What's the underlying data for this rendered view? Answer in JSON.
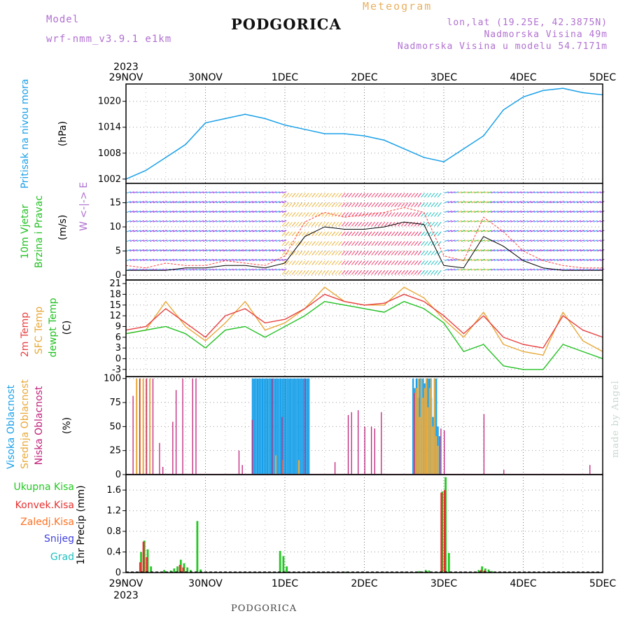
{
  "header": {
    "model_label": "Model",
    "model_name": "wrf-nmm_v3.9.1 e1km",
    "title": "PODGORICA",
    "meteogram_label": "Meteogram",
    "lonlat": "lon,lat (19.25E, 42.3875N)",
    "elevation": "Nadmorska Visina 49m",
    "model_elevation": "Nadmorska Visina u modelu 54.7171m"
  },
  "footer": {
    "station": "PODGORICA",
    "credit": "made by Angel"
  },
  "colors": {
    "pressure": "#1aa0e8",
    "wind_speed": "#000000",
    "gust": "#ff4040",
    "temp2m": "#e84040",
    "sfc_temp": "#e8a838",
    "dewpt": "#22c022",
    "high_cloud": "#1aa0e8",
    "mid_cloud": "#e8a838",
    "low_cloud": "#c0207a",
    "total_precip": "#22c822",
    "conv_precip": "#e83030",
    "frozen_precip": "#ff7020",
    "snow": "#4040e0",
    "hail": "#20c0c0"
  },
  "chart_data": {
    "year": "2023",
    "x_tick_labels": [
      "29NOV",
      "30NOV",
      "1DEC",
      "2DEC",
      "3DEC",
      "4DEC",
      "5DEC"
    ],
    "panels": [
      {
        "type": "line",
        "name": "pressure",
        "ylabel": "Pritisak na nivou mora",
        "unit": "(hPa)",
        "ylim": [
          1001,
          1024
        ],
        "yticks": [
          1002,
          1008,
          1014,
          1020
        ],
        "x_hours": [
          0,
          6,
          12,
          18,
          24,
          30,
          36,
          42,
          48,
          54,
          60,
          66,
          72,
          78,
          84,
          90,
          96,
          102,
          108,
          114,
          120,
          126,
          132,
          138,
          144
        ],
        "values": [
          1002,
          1004,
          1007,
          1010,
          1015,
          1016,
          1017,
          1016,
          1014.5,
          1013.5,
          1012.5,
          1012.5,
          1012,
          1011,
          1009,
          1007,
          1006,
          1009,
          1012,
          1018,
          1021,
          1022.5,
          1023,
          1022,
          1021.5
        ]
      },
      {
        "type": "wind",
        "name": "wind",
        "ylabel_lines": [
          "10m Vjetar",
          "Brzina i Pravac"
        ],
        "unit": "(m/s)",
        "compass": "W <-|-> E",
        "ylim": [
          -1,
          19
        ],
        "yticks": [
          0,
          5,
          10,
          15
        ],
        "x_hours": [
          0,
          6,
          12,
          18,
          24,
          30,
          36,
          42,
          48,
          54,
          60,
          66,
          72,
          78,
          84,
          90,
          96,
          102,
          108,
          114,
          120,
          126,
          132,
          138,
          144
        ],
        "speed": [
          1,
          1,
          1,
          1.5,
          1.5,
          2,
          2,
          1.5,
          2.5,
          8,
          10,
          9.5,
          9.5,
          10,
          11,
          10.5,
          2,
          1.5,
          8,
          6,
          3,
          1.5,
          1,
          1,
          1
        ],
        "gust": [
          2,
          1.5,
          2.5,
          2,
          2,
          3,
          2.5,
          2,
          4,
          11,
          13,
          12,
          12.5,
          13,
          14,
          13,
          4,
          3,
          12,
          9,
          5,
          3,
          2,
          1.5,
          1.5
        ]
      },
      {
        "type": "line",
        "name": "temperature",
        "ylabel_lines": [
          "2m Temp",
          "SFC Temp",
          "dewpt Temp"
        ],
        "unit": "(C)",
        "ylim": [
          -5,
          22
        ],
        "yticks": [
          -3,
          0,
          3,
          6,
          9,
          12,
          15,
          18,
          21
        ],
        "x_hours": [
          0,
          6,
          12,
          18,
          24,
          30,
          36,
          42,
          48,
          54,
          60,
          66,
          72,
          78,
          84,
          90,
          96,
          102,
          108,
          114,
          120,
          126,
          132,
          138,
          144
        ],
        "temp2m": [
          8,
          9,
          14,
          10,
          6,
          12,
          14,
          10,
          11,
          14,
          18,
          16,
          15,
          15.5,
          18,
          16,
          12,
          7,
          12,
          6,
          4,
          3,
          12,
          8,
          6
        ],
        "sfc_temp": [
          7,
          8,
          16,
          9,
          5,
          10,
          16,
          8,
          10,
          14,
          20,
          16,
          15,
          15,
          20,
          17,
          11,
          6,
          13,
          4,
          2,
          1,
          13,
          5,
          2
        ],
        "dewpt": [
          7,
          8,
          9,
          7,
          3,
          8,
          9,
          6,
          9,
          12,
          16,
          15,
          14,
          13,
          16,
          14,
          10,
          2,
          4,
          -2,
          -3,
          -3,
          4,
          2,
          0
        ]
      },
      {
        "type": "bar",
        "name": "cloud",
        "ylabel_lines": [
          "Visoka Oblacnost",
          "Srednja Oblacnost",
          "Niska Oblacnost"
        ],
        "unit": "(%)",
        "ylim": [
          0,
          102
        ],
        "yticks": [
          0,
          25,
          50,
          75,
          100
        ],
        "series": [
          {
            "name": "Visoka Oblacnost",
            "x_hours": [
              38,
              38.5,
              39,
              39.5,
              40,
              40.5,
              41,
              41.5,
              42,
              42.5,
              43,
              43.5,
              44,
              44.5,
              45,
              45.5,
              46,
              46.5,
              47,
              47.5,
              48,
              48.5,
              49,
              49.5,
              50,
              50.5,
              51,
              51.5,
              52,
              52.5,
              53,
              53.5,
              54,
              54.5,
              55,
              86.5,
              87,
              87.5,
              88,
              88.5,
              89,
              89.5,
              90,
              90.5,
              91,
              91.5,
              92,
              92.5,
              93,
              93.5,
              94,
              94.5
            ],
            "values": [
              100,
              100,
              100,
              100,
              100,
              100,
              100,
              100,
              100,
              100,
              100,
              100,
              100,
              100,
              100,
              100,
              100,
              100,
              100,
              100,
              100,
              100,
              100,
              100,
              100,
              100,
              100,
              100,
              100,
              100,
              100,
              100,
              100,
              100,
              100,
              100,
              90,
              100,
              80,
              100,
              100,
              100,
              95,
              100,
              100,
              100,
              80,
              60,
              100,
              100,
              50,
              40
            ]
          },
          {
            "name": "Srednja Oblacnost",
            "x_hours": [
              3,
              4,
              5,
              6,
              7,
              45,
              47,
              52,
              87,
              87.5,
              88,
              88.5,
              89,
              89.5,
              90,
              90.5,
              91,
              91.5,
              92,
              92.5,
              93,
              93.5,
              94
            ],
            "values": [
              100,
              100,
              100,
              100,
              100,
              20,
              15,
              15,
              85,
              90,
              100,
              60,
              100,
              80,
              90,
              100,
              70,
              90,
              100,
              50,
              100,
              40,
              30
            ]
          },
          {
            "name": "Niska Oblacnost",
            "x_hours": [
              2,
              4,
              6,
              8,
              10,
              11,
              14,
              15,
              17,
              20,
              21,
              34,
              35,
              38,
              44,
              47,
              54,
              63,
              67,
              68,
              70,
              72,
              74,
              75,
              77,
              87,
              95,
              96,
              108,
              114,
              140
            ],
            "values": [
              82,
              100,
              100,
              100,
              33,
              8,
              55,
              88,
              100,
              100,
              100,
              25,
              10,
              57,
              100,
              60,
              100,
              13,
              62,
              65,
              67,
              50,
              50,
              48,
              65,
              85,
              48,
              46,
              63,
              5,
              10
            ]
          }
        ]
      },
      {
        "type": "bar",
        "name": "precip",
        "ylabel": "1hr Precip",
        "unit": "(mm)",
        "ylim": [
          0,
          1.9
        ],
        "yticks": [
          0,
          0.4,
          0.8,
          1.2,
          1.6
        ],
        "legend": [
          "Ukupna Kisa",
          "Konvek.Kisa",
          "Zaledj.Kisa",
          "Snijeg",
          "Grad"
        ],
        "series": [
          {
            "name": "Ukupna Kisa",
            "x_hours": [
              3,
              4,
              5,
              6,
              7,
              11,
              13,
              14,
              15,
              16,
              17,
              18,
              19,
              21,
              22,
              46,
              47,
              48,
              66,
              88,
              89,
              90,
              91,
              95,
              96,
              97,
              106,
              107,
              108,
              109,
              110
            ],
            "values": [
              0.02,
              0.4,
              0.62,
              0.45,
              0.12,
              0.05,
              0.04,
              0.08,
              0.12,
              0.25,
              0.18,
              0.1,
              0.05,
              1.0,
              0.06,
              0.42,
              0.32,
              0.12,
              0.02,
              0.03,
              0.02,
              0.05,
              0.04,
              1.57,
              1.85,
              0.38,
              0.05,
              0.12,
              0.08,
              0.06,
              0.03
            ]
          },
          {
            "name": "Konvek.Kisa",
            "x_hours": [
              4,
              5,
              6,
              16,
              17,
              95,
              96,
              107,
              108
            ],
            "values": [
              0.2,
              0.6,
              0.3,
              0.15,
              0.1,
              1.55,
              1.6,
              0.05,
              0.04
            ]
          }
        ]
      }
    ]
  }
}
